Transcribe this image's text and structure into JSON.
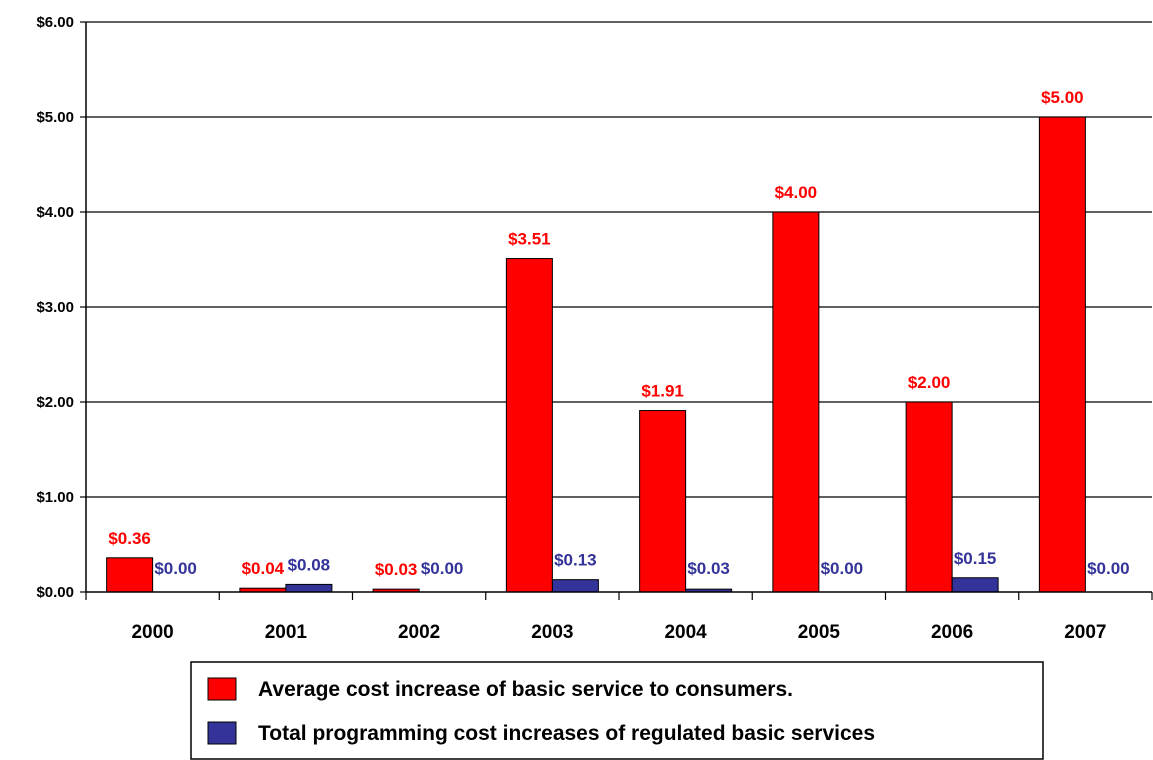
{
  "chart_data": {
    "type": "bar",
    "categories": [
      "2000",
      "2001",
      "2002",
      "2003",
      "2004",
      "2005",
      "2006",
      "2007"
    ],
    "series": [
      {
        "name": "Average cost increase of basic service to consumers.",
        "values": [
          0.36,
          0.04,
          0.03,
          3.51,
          1.91,
          4.0,
          2.0,
          5.0
        ],
        "data_labels": [
          "$0.36",
          "$0.04",
          "$0.03",
          "$3.51",
          "$1.91",
          "$4.00",
          "$2.00",
          "$5.00"
        ],
        "color": "#ff0000",
        "label_color": "#ff0000"
      },
      {
        "name": "Total programming cost increases of regulated basic services",
        "values": [
          0.0,
          0.08,
          0.0,
          0.13,
          0.03,
          0.0,
          0.15,
          0.0
        ],
        "data_labels": [
          "$0.00",
          "$0.08",
          "$0.00",
          "$0.13",
          "$0.03",
          "$0.00",
          "$0.15",
          "$0.00"
        ],
        "color": "#333399",
        "label_color": "#333399"
      }
    ],
    "ylim": [
      0,
      6
    ],
    "yticks": [
      0,
      1,
      2,
      3,
      4,
      5,
      6
    ],
    "ytick_labels": [
      "$0.00",
      "$1.00",
      "$2.00",
      "$3.00",
      "$4.00",
      "$5.00",
      "$6.00"
    ],
    "title": "",
    "xlabel": "",
    "ylabel": "",
    "grid": "horizontal",
    "legend_position": "bottom"
  }
}
